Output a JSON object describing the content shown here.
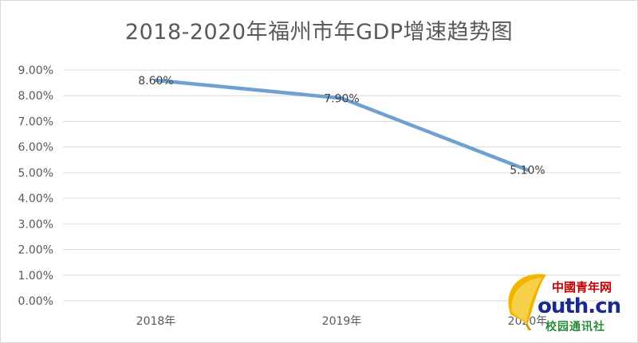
{
  "chart_data": {
    "type": "line",
    "title": "2018-2020年福州市年GDP增速趋势图",
    "xlabel": "",
    "ylabel": "",
    "categories": [
      "2018年",
      "2019年",
      "2020年"
    ],
    "series": [
      {
        "values": [
          8.6,
          7.9,
          5.1
        ],
        "labels": [
          "8.60%",
          "7.90%",
          "5.10%"
        ]
      }
    ],
    "ylim": [
      0,
      9
    ],
    "y_ticks": [
      "0.00%",
      "1.00%",
      "2.00%",
      "3.00%",
      "4.00%",
      "5.00%",
      "6.00%",
      "7.00%",
      "8.00%",
      "9.00%"
    ],
    "grid": true,
    "line_color": "#6fa0d2"
  },
  "watermark": {
    "top_left": "中國",
    "top_right": "青年网",
    "main": "outh.cn",
    "bottom": "校园通讯社"
  }
}
